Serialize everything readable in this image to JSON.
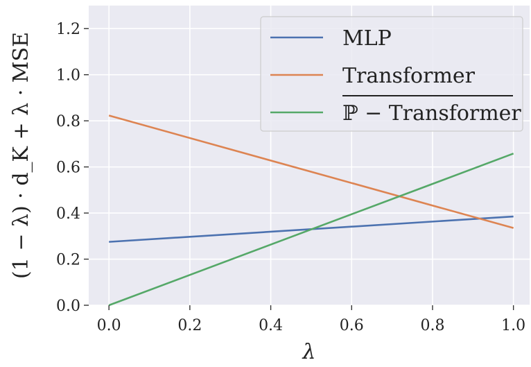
{
  "chart_data": {
    "type": "line",
    "xlabel": "λ",
    "ylabel": "(1 − λ) · d_K + λ · MSE",
    "xlim": [
      -0.05,
      1.04
    ],
    "ylim": [
      0.0,
      1.3
    ],
    "xticks": [
      0.0,
      0.2,
      0.4,
      0.6,
      0.8,
      1.0
    ],
    "xtick_labels": [
      "0.0",
      "0.2",
      "0.4",
      "0.6",
      "0.8",
      "1.0"
    ],
    "yticks": [
      0.0,
      0.2,
      0.4,
      0.6,
      0.8,
      1.0,
      1.2
    ],
    "ytick_labels": [
      "0.0",
      "0.2",
      "0.4",
      "0.6",
      "0.8",
      "1.0",
      "1.2"
    ],
    "grid": true,
    "legend_position": "top-right",
    "series": [
      {
        "name": "MLP",
        "color": "#4c72b0",
        "x": [
          0.0,
          1.0
        ],
        "y": [
          0.275,
          0.385
        ]
      },
      {
        "name": "Transformer",
        "color": "#dd8452",
        "x": [
          0.0,
          1.0
        ],
        "y": [
          0.823,
          0.335
        ]
      },
      {
        "name": "ℙ − Transformer",
        "color": "#55a868",
        "x": [
          0.0,
          1.0
        ],
        "y": [
          0.0,
          0.658
        ]
      }
    ]
  }
}
